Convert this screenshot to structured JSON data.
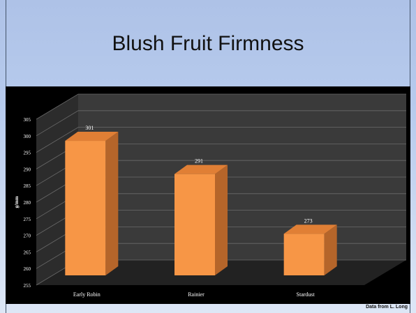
{
  "slide": {
    "title": "Blush Fruit Firmness",
    "credit": "Data from L. Long"
  },
  "colors": {
    "bar_front": "#f79646",
    "bar_side": "#b5652a",
    "bar_top": "#e07f35",
    "chart_bg": "#000000",
    "wall": "#3a3a3a",
    "floor": "#222222",
    "grid": "#6a6a6a",
    "text": "#ffffff"
  },
  "chart_data": {
    "type": "bar",
    "style": "3d-column",
    "title": "",
    "xlabel": "",
    "ylabel": "g/mm",
    "ylim": [
      255,
      305
    ],
    "yticks": [
      255,
      260,
      265,
      270,
      275,
      280,
      285,
      290,
      295,
      300,
      305
    ],
    "categories": [
      "Early Robin",
      "Rainier",
      "Stardust"
    ],
    "values": [
      301,
      291,
      273
    ],
    "data_labels": [
      "301",
      "291",
      "273"
    ],
    "grid": true,
    "legend": "none"
  }
}
